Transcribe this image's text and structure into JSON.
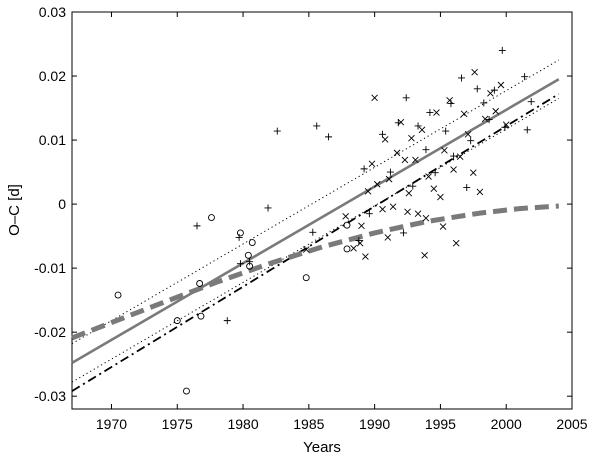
{
  "chart_data": {
    "type": "scatter",
    "xlabel": "Years",
    "ylabel": "O–C  [d]",
    "xlim": [
      1967,
      2005
    ],
    "ylim": [
      -0.032,
      0.03
    ],
    "x_ticks": [
      1970,
      1975,
      1980,
      1985,
      1990,
      1995,
      2000,
      2005
    ],
    "x_tick_labels": [
      "1970",
      "1975",
      "1980",
      "1985",
      "1990",
      "1995",
      "2000",
      "2005"
    ],
    "y_ticks": [
      -0.03,
      -0.02,
      -0.01,
      0,
      0.01,
      0.02,
      0.03
    ],
    "y_tick_labels": [
      "-0.03",
      "-0.02",
      "-0.01",
      "0",
      "0.01",
      "0.02",
      "0.03"
    ],
    "grid": false,
    "colors": {
      "fit_gray": "#7a7a7a",
      "marker": "#000000"
    },
    "series": [
      {
        "marker": "circle",
        "points": [
          [
            1970.5,
            -0.0142
          ],
          [
            1975.0,
            -0.0182
          ],
          [
            1975.7,
            -0.0292
          ],
          [
            1976.7,
            -0.0124
          ],
          [
            1976.8,
            -0.0175
          ],
          [
            1977.6,
            -0.0021
          ],
          [
            1979.8,
            -0.0045
          ],
          [
            1980.4,
            -0.008
          ],
          [
            1980.5,
            -0.0097
          ],
          [
            1980.7,
            -0.006
          ],
          [
            1984.8,
            -0.0115
          ],
          [
            1987.9,
            -0.007
          ],
          [
            1987.9,
            -0.0033
          ]
        ]
      },
      {
        "marker": "plus",
        "points": [
          [
            1976.5,
            -0.0034
          ],
          [
            1979.7,
            -0.0052
          ],
          [
            1979.8,
            -0.0093
          ],
          [
            1980.5,
            -0.009
          ],
          [
            1978.8,
            -0.0182
          ],
          [
            1981.9,
            -0.0006
          ],
          [
            1982.6,
            0.0114
          ],
          [
            1985.6,
            0.0122
          ],
          [
            1986.5,
            0.0105
          ],
          [
            1985.3,
            -0.0044
          ],
          [
            1988.8,
            -0.0057
          ],
          [
            1989.2,
            0.0055
          ],
          [
            1990.6,
            0.0109
          ],
          [
            1991.2,
            0.005
          ],
          [
            1991.8,
            0.0127
          ],
          [
            1992.4,
            0.0166
          ],
          [
            1992.9,
            0.0028
          ],
          [
            1993.3,
            0.0122
          ],
          [
            1993.9,
            0.0085
          ],
          [
            1994.2,
            0.0143
          ],
          [
            1994.6,
            0.0049
          ],
          [
            1995.4,
            0.0114
          ],
          [
            1995.8,
            0.0157
          ],
          [
            1996.0,
            0.0075
          ],
          [
            1996.6,
            0.0197
          ],
          [
            1997.0,
            0.0026
          ],
          [
            1997.3,
            0.0099
          ],
          [
            1997.8,
            0.018
          ],
          [
            1998.3,
            0.0158
          ],
          [
            1998.7,
            0.0132
          ],
          [
            1999.1,
            0.0178
          ],
          [
            1999.7,
            0.024
          ],
          [
            1999.9,
            0.012
          ],
          [
            2001.4,
            0.0199
          ],
          [
            2001.6,
            0.0116
          ],
          [
            2001.9,
            0.016
          ],
          [
            1992.2,
            -0.0045
          ],
          [
            1989.6,
            -0.0015
          ]
        ]
      },
      {
        "marker": "cross",
        "points": [
          [
            1984.8,
            -0.0071
          ],
          [
            1987.8,
            -0.0019
          ],
          [
            1988.4,
            -0.0069
          ],
          [
            1988.9,
            -0.0061
          ],
          [
            1989.3,
            -0.0082
          ],
          [
            1989.5,
            0.002
          ],
          [
            1989.8,
            0.0063
          ],
          [
            1990.0,
            0.0166
          ],
          [
            1990.2,
            0.0031
          ],
          [
            1990.6,
            -0.0008
          ],
          [
            1990.8,
            0.0101
          ],
          [
            1991.1,
            0.0039
          ],
          [
            1991.4,
            -0.0004
          ],
          [
            1991.7,
            0.008
          ],
          [
            1992.0,
            0.0128
          ],
          [
            1992.3,
            0.0069
          ],
          [
            1992.6,
            0.0017
          ],
          [
            1992.8,
            0.0103
          ],
          [
            1993.1,
            0.0069
          ],
          [
            1993.3,
            -0.0015
          ],
          [
            1993.6,
            0.0116
          ],
          [
            1993.8,
            -0.008
          ],
          [
            1994.1,
            0.0043
          ],
          [
            1994.5,
            0.0024
          ],
          [
            1994.7,
            0.0143
          ],
          [
            1995.0,
            0.0011
          ],
          [
            1995.3,
            0.0084
          ],
          [
            1995.7,
            0.0162
          ],
          [
            1996.0,
            0.0054
          ],
          [
            1996.2,
            -0.0061
          ],
          [
            1996.5,
            0.0074
          ],
          [
            1996.8,
            0.0141
          ],
          [
            1997.1,
            0.0109
          ],
          [
            1997.6,
            0.0206
          ],
          [
            1998.0,
            0.0019
          ],
          [
            1998.4,
            0.0133
          ],
          [
            1998.8,
            0.0173
          ],
          [
            1999.2,
            0.0145
          ],
          [
            1999.6,
            0.0186
          ],
          [
            2000.0,
            0.0124
          ],
          [
            1995.2,
            -0.0035
          ],
          [
            1993.9,
            -0.0022
          ],
          [
            1991.0,
            -0.0052
          ],
          [
            1989.0,
            -0.0034
          ],
          [
            1992.5,
            -0.0012
          ],
          [
            1997.5,
            0.0049
          ]
        ]
      }
    ],
    "lines": [
      {
        "style": "solid",
        "color": "gray",
        "points": [
          [
            1967,
            -0.0248
          ],
          [
            2004,
            0.0195
          ]
        ]
      },
      {
        "style": "dotted",
        "color": "black",
        "points": [
          [
            1967,
            -0.0218
          ],
          [
            2004,
            0.0225
          ]
        ]
      },
      {
        "style": "dotted",
        "color": "black",
        "points": [
          [
            1967,
            -0.0278
          ],
          [
            2004,
            0.0165
          ]
        ]
      },
      {
        "style": "dash-dot",
        "color": "black",
        "points": [
          [
            1967,
            -0.0292
          ],
          [
            2004,
            0.0172
          ]
        ]
      },
      {
        "style": "dashed",
        "color": "gray",
        "points": [
          [
            1967,
            -0.0209
          ],
          [
            1970,
            -0.0185
          ],
          [
            1974,
            -0.0153
          ],
          [
            1978,
            -0.0122
          ],
          [
            1982,
            -0.0093
          ],
          [
            1986,
            -0.0067
          ],
          [
            1990,
            -0.0045
          ],
          [
            1994,
            -0.0027
          ],
          [
            1998,
            -0.0014
          ],
          [
            2001,
            -0.0007
          ],
          [
            2004,
            -0.0003
          ]
        ]
      }
    ]
  }
}
